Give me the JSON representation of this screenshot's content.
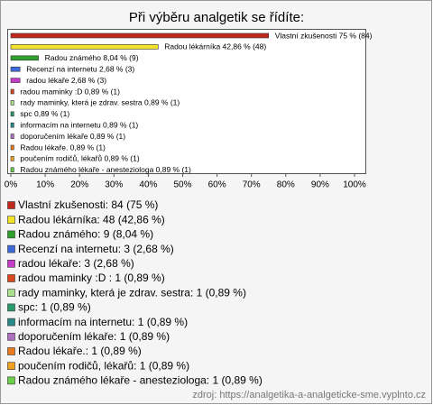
{
  "chart_data": {
    "type": "hbar",
    "title": "Při výběru analgetik se řídíte:",
    "categories": [
      "Vlastní zkušenosti: 84 (75 %)",
      "Radou lékárníka: 48 (42,86 %)",
      "Radou známého: 9 (8,04 %)",
      "Recenzí na internetu: 3 (2,68 %)",
      "radou lékaře: 3 (2,68 %)",
      "radou maminky :D : 1 (0,89 %)",
      "rady maminky, která je zdrav. sestra: 1 (0,89 %)",
      "spc: 1 (0,89 %)",
      "informacím na internetu: 1 (0,89 %)",
      "doporučením lékaře: 1 (0,89 %)",
      "Radou lékaře.: 1 (0,89 %)",
      "poučením rodičů, lékařů: 1 (0,89 %)",
      "Radou známého lékaře - anesteziologa: 1 (0,89 %)"
    ],
    "values": [
      75,
      42.86,
      8.04,
      2.68,
      2.68,
      0.89,
      0.89,
      0.89,
      0.89,
      0.89,
      0.89,
      0.89,
      0.89
    ],
    "value_labels": [
      "Vlastní zkušenosti 75 % (84)",
      "Radou lékárníka 42,86 % (48)",
      "Radou známého 8,04 % (9)",
      "Recenzí na internetu 2,68 % (3)",
      "radou lékaře 2,68 % (3)",
      "radou maminky :D  0,89 % (1)",
      "rady maminky, která je zdrav. sestra 0,89 % (1)",
      "spc 0,89 % (1)",
      "informacím na internetu 0,89 % (1)",
      "doporučením lékaře 0,89 % (1)",
      "Radou lékaře. 0,89 % (1)",
      "poučením rodičů, lékařů 0,89 % (1)",
      "Radou známého lékaře - anesteziologa 0,89 % (1)"
    ],
    "colors": [
      "#c0281c",
      "#f2e22a",
      "#2fa02c",
      "#3c6ad8",
      "#c53cc8",
      "#d8481c",
      "#a8e08c",
      "#2a9a6a",
      "#2a8a8a",
      "#b070c0",
      "#e87a20",
      "#f0a020",
      "#6ad04a"
    ],
    "xlim": [
      0,
      100
    ],
    "xticks": [
      {
        "value": 0,
        "label": "0%"
      },
      {
        "value": 10,
        "label": "10%"
      },
      {
        "value": 20,
        "label": "20%"
      },
      {
        "value": 30,
        "label": "30%"
      },
      {
        "value": 40,
        "label": "40%"
      },
      {
        "value": 50,
        "label": "50%"
      },
      {
        "value": 60,
        "label": "60%"
      },
      {
        "value": 70,
        "label": "70%"
      },
      {
        "value": 80,
        "label": "80%"
      },
      {
        "value": 90,
        "label": "90%"
      },
      {
        "value": 100,
        "label": "100%"
      }
    ],
    "grid": false,
    "source": "zdroj: https://analgetika-a-analgeticke-sme.vyplnto.cz"
  }
}
